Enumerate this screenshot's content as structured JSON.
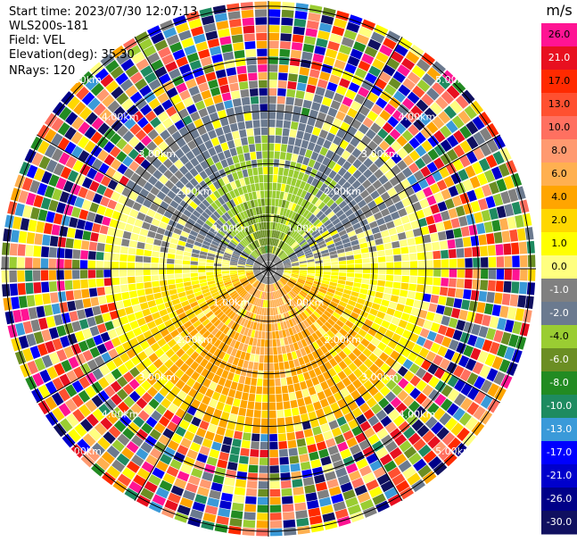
{
  "header": {
    "start_time": "Start time: 2023/07/30 12:07:13",
    "instrument": "WLS200s-181",
    "field": "Field: VEL",
    "elevation": "Elevation(deg): 35.30",
    "nrays": "NRays: 120"
  },
  "chart_data": {
    "type": "heatmap",
    "projection": "polar-ppi",
    "title": "",
    "xlabel": "",
    "ylabel": "",
    "rays": 120,
    "range_rings_km": [
      1,
      2,
      3,
      4,
      5
    ],
    "ring_label_text": "km",
    "ring_labels": [
      "1.00km",
      "2.00km",
      "3.00km",
      "4.00km",
      "5.00km"
    ],
    "spoke_angles_deg": [
      0,
      30,
      60,
      90,
      120,
      150
    ],
    "colorbar": {
      "unit": "m/s",
      "ticks": [
        "26.0",
        "21.0",
        "17.0",
        "13.0",
        "10.0",
        "8.0",
        "6.0",
        "4.0",
        "2.0",
        "1.0",
        "0.0",
        "-1.0",
        "-2.0",
        "-4.0",
        "-6.0",
        "-8.0",
        "-10.0",
        "-13.0",
        "-17.0",
        "-21.0",
        "-26.0",
        "-30.0"
      ],
      "colors": [
        "#ff1493",
        "#e81020",
        "#ff2a00",
        "#ff5030",
        "#ff7060",
        "#ff9a70",
        "#ffb050",
        "#ffa500",
        "#ffd700",
        "#ffff00",
        "#ffff80",
        "#808080",
        "#6b7a8f",
        "#9acd32",
        "#6b8e23",
        "#228b22",
        "#1e8b60",
        "#3a9ad9",
        "#0000ff",
        "#0000cc",
        "#000088",
        "#101060"
      ]
    },
    "velocity_structure": {
      "near_zero_band_km": [
        0.0,
        0.25
      ],
      "negative_sector": "north",
      "positive_sector": "south",
      "core_negative_ms": -8,
      "core_positive_ms": 6,
      "noise_beyond_km": 3.0
    }
  }
}
